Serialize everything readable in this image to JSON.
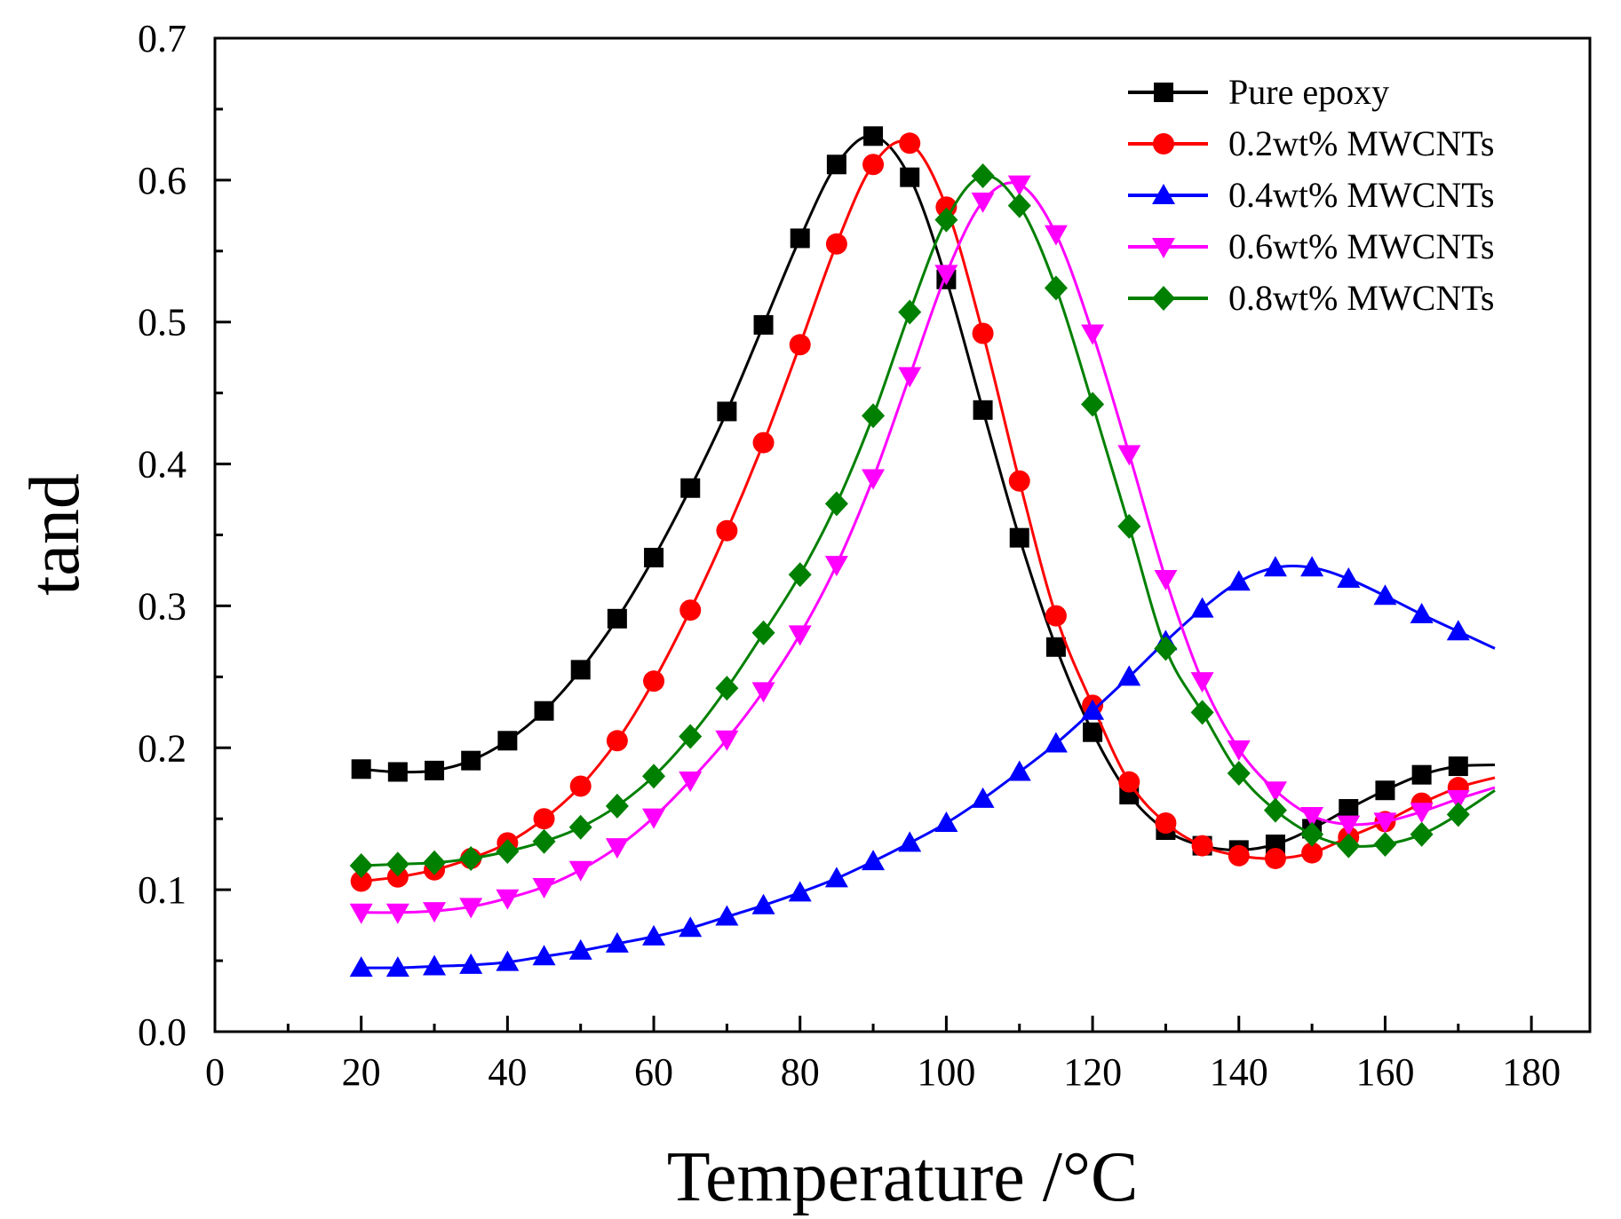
{
  "chart_data": {
    "type": "line",
    "title": "",
    "xlabel": "Temperature /°C",
    "ylabel": "tand",
    "xlim": [
      0,
      188
    ],
    "ylim": [
      0,
      0.7
    ],
    "xticks": [
      "0",
      "20",
      "40",
      "60",
      "80",
      "100",
      "120",
      "140",
      "160",
      "180"
    ],
    "yticks": [
      "0.0",
      "0.1",
      "0.2",
      "0.3",
      "0.4",
      "0.5",
      "0.6",
      "0.7"
    ],
    "legend_position": "top-right",
    "grid": false,
    "series": [
      {
        "name": "Pure epoxy",
        "color": "#000000",
        "marker": "square",
        "x": [
          20,
          25,
          30,
          35,
          40,
          45,
          50,
          55,
          60,
          65,
          70,
          75,
          80,
          85,
          90,
          95,
          100,
          105,
          110,
          115,
          120,
          125,
          130,
          135,
          140,
          145,
          150,
          155,
          160,
          165,
          170
        ],
        "y": [
          0.185,
          0.183,
          0.184,
          0.191,
          0.205,
          0.226,
          0.255,
          0.291,
          0.334,
          0.383,
          0.437,
          0.498,
          0.559,
          0.611,
          0.631,
          0.602,
          0.53,
          0.438,
          0.348,
          0.271,
          0.211,
          0.167,
          0.142,
          0.131,
          0.128,
          0.132,
          0.143,
          0.157,
          0.17,
          0.181,
          0.187
        ],
        "curve_end": [
          175,
          0.188
        ]
      },
      {
        "name": "0.2wt%   MWCNTs",
        "color": "#ff0000",
        "marker": "circle",
        "x": [
          20,
          25,
          30,
          35,
          40,
          45,
          50,
          55,
          60,
          65,
          70,
          75,
          80,
          85,
          90,
          95,
          100,
          105,
          110,
          115,
          120,
          125,
          130,
          135,
          140,
          145,
          150,
          155,
          160,
          165,
          170
        ],
        "y": [
          0.106,
          0.109,
          0.114,
          0.122,
          0.133,
          0.15,
          0.173,
          0.205,
          0.247,
          0.297,
          0.353,
          0.415,
          0.484,
          0.555,
          0.611,
          0.626,
          0.581,
          0.492,
          0.388,
          0.293,
          0.23,
          0.176,
          0.147,
          0.131,
          0.124,
          0.122,
          0.126,
          0.137,
          0.148,
          0.161,
          0.172
        ],
        "curve_end": [
          175,
          0.179
        ]
      },
      {
        "name": "0.4wt%  MWCNTs",
        "color": "#0000ff",
        "marker": "triangle-up",
        "x": [
          20,
          25,
          30,
          35,
          40,
          45,
          50,
          55,
          60,
          65,
          70,
          75,
          80,
          85,
          90,
          95,
          100,
          105,
          110,
          115,
          120,
          125,
          130,
          135,
          140,
          145,
          150,
          155,
          160,
          165,
          170
        ],
        "y": [
          0.045,
          0.045,
          0.046,
          0.047,
          0.049,
          0.053,
          0.057,
          0.062,
          0.067,
          0.073,
          0.081,
          0.089,
          0.098,
          0.108,
          0.12,
          0.133,
          0.147,
          0.164,
          0.183,
          0.203,
          0.226,
          0.25,
          0.275,
          0.298,
          0.317,
          0.327,
          0.327,
          0.319,
          0.307,
          0.294,
          0.282
        ],
        "curve_end": [
          175,
          0.27
        ]
      },
      {
        "name": "0.6wt%  MWCNTs",
        "color": "#ff00ff",
        "marker": "triangle-down",
        "x": [
          20,
          25,
          30,
          35,
          40,
          45,
          50,
          55,
          60,
          65,
          70,
          75,
          80,
          85,
          90,
          95,
          100,
          105,
          110,
          115,
          120,
          125,
          130,
          135,
          140,
          145,
          150,
          155,
          160,
          165,
          170
        ],
        "y": [
          0.084,
          0.084,
          0.085,
          0.088,
          0.094,
          0.102,
          0.114,
          0.13,
          0.151,
          0.177,
          0.206,
          0.24,
          0.28,
          0.329,
          0.39,
          0.462,
          0.534,
          0.585,
          0.597,
          0.562,
          0.492,
          0.407,
          0.319,
          0.247,
          0.199,
          0.17,
          0.152,
          0.146,
          0.148,
          0.155,
          0.164
        ],
        "curve_end": [
          175,
          0.172
        ]
      },
      {
        "name": "0.8wt%  MWCNTs",
        "color": "#008000",
        "marker": "diamond",
        "x": [
          20,
          25,
          30,
          35,
          40,
          45,
          50,
          55,
          60,
          65,
          70,
          75,
          80,
          85,
          90,
          95,
          100,
          105,
          110,
          115,
          120,
          125,
          130,
          135,
          140,
          145,
          150,
          155,
          160,
          165,
          170
        ],
        "y": [
          0.117,
          0.118,
          0.119,
          0.122,
          0.127,
          0.134,
          0.144,
          0.159,
          0.18,
          0.208,
          0.242,
          0.281,
          0.322,
          0.372,
          0.434,
          0.507,
          0.572,
          0.603,
          0.582,
          0.524,
          0.442,
          0.356,
          0.27,
          0.225,
          0.182,
          0.156,
          0.139,
          0.131,
          0.132,
          0.139,
          0.153
        ],
        "curve_end": [
          175,
          0.17
        ]
      }
    ]
  }
}
